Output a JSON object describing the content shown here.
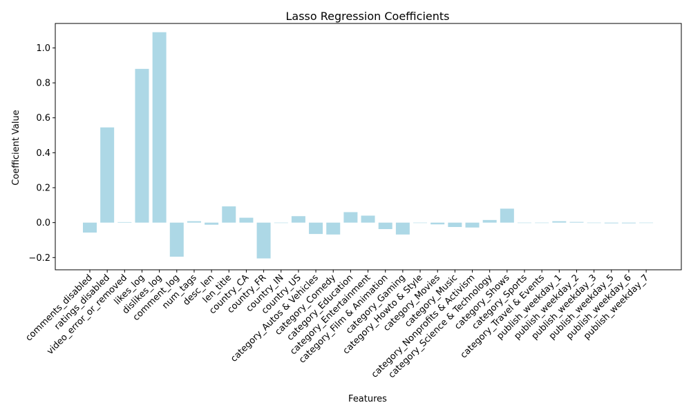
{
  "chart_data": {
    "type": "bar",
    "title": "Lasso Regression Coefficients",
    "xlabel": "Features",
    "ylabel": "Coefficient Value",
    "ylim": [
      -0.27,
      1.14
    ],
    "yticks": [
      -0.2,
      0.0,
      0.2,
      0.4,
      0.6,
      0.8,
      1.0
    ],
    "ytick_labels": [
      "−0.2",
      "0.0",
      "0.2",
      "0.4",
      "0.6",
      "0.8",
      "1.0"
    ],
    "grid": false,
    "bar_color": "#add8e6",
    "categories": [
      "comments_disabled",
      "ratings_disabled",
      "video_error_or_removed",
      "likes_log",
      "dislikes_log",
      "comment_log",
      "num_tags",
      "desc_len",
      "len_title",
      "country_CA",
      "country_FR",
      "country_IN",
      "country_US",
      "category_Autos & Vehicles",
      "category_Comedy",
      "category_Education",
      "category_Entertainment",
      "category_Film & Animation",
      "category_Gaming",
      "category_Howto & Style",
      "category_Movies",
      "category_Music",
      "category_Nonprofits & Activism",
      "category_Science & Technology",
      "category_Shows",
      "category_Sports",
      "category_Travel & Events",
      "publish_weekday_1",
      "publish_weekday_2",
      "publish_weekday_3",
      "publish_weekday_5",
      "publish_weekday_6",
      "publish_weekday_7"
    ],
    "values": [
      -0.057,
      0.545,
      0.003,
      0.88,
      1.09,
      -0.195,
      0.008,
      -0.012,
      0.093,
      0.028,
      -0.205,
      0.0,
      0.037,
      -0.065,
      -0.068,
      0.06,
      0.04,
      -0.037,
      -0.068,
      0.0,
      -0.01,
      -0.025,
      -0.028,
      0.015,
      0.08,
      0.0,
      0.0,
      0.008,
      0.004,
      0.0,
      -0.004,
      -0.004,
      0.0
    ]
  }
}
